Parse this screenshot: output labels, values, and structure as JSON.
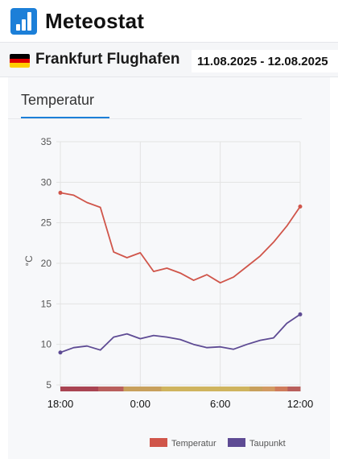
{
  "app": {
    "title": "Meteostat"
  },
  "station": {
    "name": "Frankfurt Flughafen",
    "date_range": "11.08.2025 - 12.08.2025",
    "flag_colors": [
      "#000000",
      "#dd0000",
      "#ffce00"
    ]
  },
  "tabs": [
    {
      "label": "Temperatur",
      "active": true
    }
  ],
  "chart_data": {
    "type": "line",
    "ylabel": "°C",
    "ylim": [
      5,
      35
    ],
    "yticks": [
      5,
      10,
      15,
      20,
      25,
      30,
      35
    ],
    "xticks": [
      "18:00",
      "0:00",
      "6:00",
      "12:00"
    ],
    "x": [
      "18:00",
      "19:00",
      "20:00",
      "21:00",
      "22:00",
      "23:00",
      "0:00",
      "1:00",
      "2:00",
      "3:00",
      "4:00",
      "5:00",
      "6:00",
      "7:00",
      "8:00",
      "9:00",
      "10:00",
      "11:00",
      "12:00"
    ],
    "grid": true,
    "legend": "bottom-right",
    "series": [
      {
        "name": "Temperatur",
        "color": "#d0554a",
        "values": [
          28.7,
          28.4,
          27.5,
          26.9,
          21.4,
          20.7,
          21.3,
          19.0,
          19.4,
          18.8,
          17.9,
          18.6,
          17.6,
          18.3,
          19.6,
          20.9,
          22.6,
          24.6,
          27.0
        ]
      },
      {
        "name": "Taupunkt",
        "color": "#5e4b94",
        "values": [
          9.0,
          9.6,
          9.8,
          9.3,
          10.9,
          11.3,
          10.7,
          11.1,
          10.9,
          10.6,
          10.0,
          9.6,
          9.7,
          9.4,
          10.0,
          10.5,
          10.8,
          12.6,
          13.7
        ]
      }
    ],
    "condition_colors": [
      "#a94452",
      "#a94452",
      "#a94452",
      "#b95f5c",
      "#b95f5c",
      "#c8a05c",
      "#c8a05c",
      "#c8a05c",
      "#cfb45e",
      "#cfb45e",
      "#cfb45e",
      "#cfb45e",
      "#cfb45e",
      "#cfb45e",
      "#cfb45e",
      "#c8a05c",
      "#d29a62",
      "#cf7c5c",
      "#b95f5c"
    ]
  }
}
